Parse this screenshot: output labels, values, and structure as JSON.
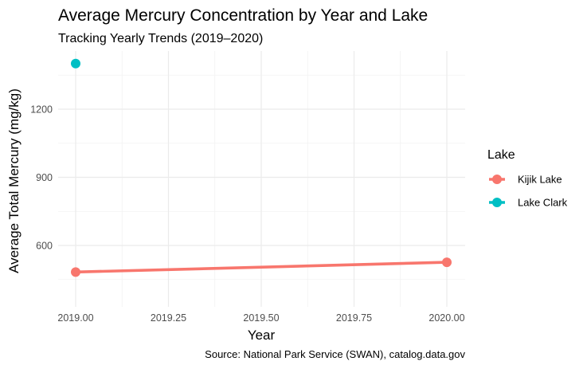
{
  "chart_data": {
    "type": "line",
    "title": "Average Mercury Concentration by Year and Lake",
    "subtitle": "Tracking Yearly Trends (2019–2020)",
    "xlabel": "Year",
    "ylabel": "Average Total Mercury (mg/kg)",
    "caption": "Source: National Park Service (SWAN), catalog.data.gov",
    "xlim": [
      2019.0,
      2020.0
    ],
    "ylim": [
      390,
      1430
    ],
    "xticks": [
      2019.0,
      2019.25,
      2019.5,
      2019.75,
      2020.0
    ],
    "xtick_labels": [
      "2019.00",
      "2019.25",
      "2019.50",
      "2019.75",
      "2020.00"
    ],
    "yticks": [
      600,
      900,
      1200
    ],
    "ytick_labels": [
      "600",
      "900",
      "1200"
    ],
    "grid": true,
    "legend": {
      "title": "Lake",
      "position": "right"
    },
    "series": [
      {
        "name": "Kijik Lake",
        "color": "#F8766D",
        "x": [
          2019.0,
          2020.0
        ],
        "y": [
          483,
          526
        ]
      },
      {
        "name": "Lake Clark",
        "color": "#00BFC4",
        "x": [
          2019.0
        ],
        "y": [
          1401
        ]
      }
    ]
  }
}
